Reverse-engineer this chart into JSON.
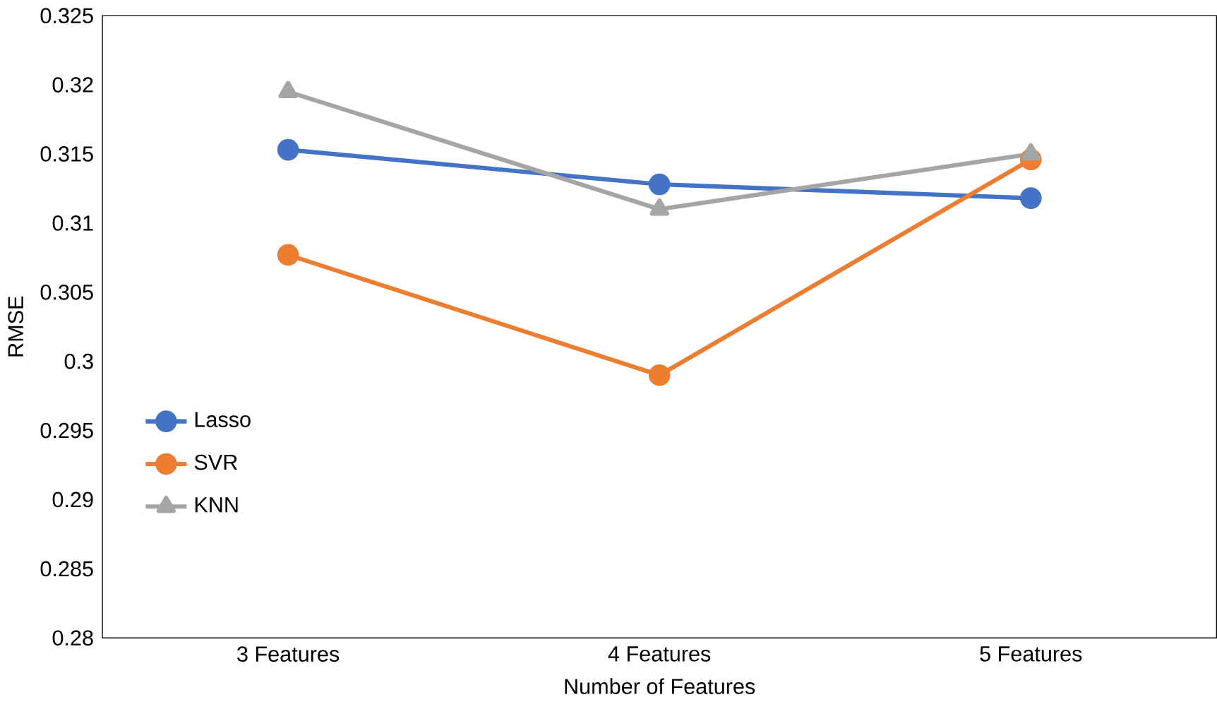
{
  "chart_data": {
    "type": "line",
    "xlabel": "Number of Features",
    "ylabel": "RMSE",
    "categories": [
      "3 Features",
      "4 Features",
      "5 Features"
    ],
    "ylim": [
      0.28,
      0.325
    ],
    "yticks": [
      0.28,
      0.285,
      0.29,
      0.295,
      0.3,
      0.305,
      0.31,
      0.315,
      0.32,
      0.325
    ],
    "legend": "bottom left",
    "grid": false,
    "series": [
      {
        "name": "Lasso",
        "color": "#4472c4",
        "marker": "circle",
        "values": [
          0.3153,
          0.3128,
          0.3118
        ]
      },
      {
        "name": "SVR",
        "color": "#ed7d31",
        "marker": "circle",
        "values": [
          0.3077,
          0.299,
          0.3146
        ]
      },
      {
        "name": "KNN",
        "color": "#a5a5a5",
        "marker": "triangle",
        "values": [
          0.3195,
          0.311,
          0.315
        ]
      }
    ]
  }
}
